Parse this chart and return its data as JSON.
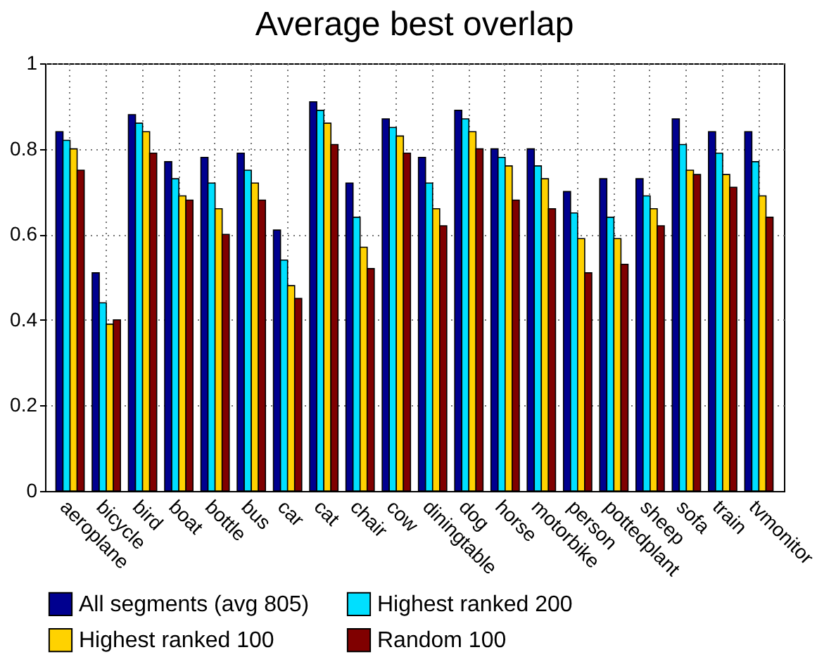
{
  "chart_data": {
    "type": "bar",
    "title": "Average best overlap",
    "categories": [
      "aeroplane",
      "bicycle",
      "bird",
      "boat",
      "bottle",
      "bus",
      "car",
      "cat",
      "chair",
      "cow",
      "diningtable",
      "dog",
      "horse",
      "motorbike",
      "person",
      "pottedplant",
      "sheep",
      "sofa",
      "train",
      "tvmonitor"
    ],
    "series": [
      {
        "name": "All segments (avg 805)",
        "color": "#00008f",
        "values": [
          0.84,
          0.51,
          0.88,
          0.77,
          0.78,
          0.79,
          0.61,
          0.91,
          0.72,
          0.87,
          0.78,
          0.89,
          0.8,
          0.8,
          0.7,
          0.73,
          0.73,
          0.87,
          0.84,
          0.84
        ]
      },
      {
        "name": "Highest ranked 200",
        "color": "#00dfff",
        "values": [
          0.82,
          0.44,
          0.86,
          0.73,
          0.72,
          0.75,
          0.54,
          0.89,
          0.64,
          0.85,
          0.72,
          0.87,
          0.78,
          0.76,
          0.65,
          0.64,
          0.69,
          0.81,
          0.79,
          0.77
        ]
      },
      {
        "name": "Highest ranked 100",
        "color": "#ffd200",
        "values": [
          0.8,
          0.39,
          0.84,
          0.69,
          0.66,
          0.72,
          0.48,
          0.86,
          0.57,
          0.83,
          0.66,
          0.84,
          0.76,
          0.73,
          0.59,
          0.59,
          0.66,
          0.75,
          0.74,
          0.69
        ]
      },
      {
        "name": "Random 100",
        "color": "#800000",
        "values": [
          0.75,
          0.4,
          0.79,
          0.68,
          0.6,
          0.68,
          0.45,
          0.81,
          0.52,
          0.79,
          0.62,
          0.8,
          0.68,
          0.66,
          0.51,
          0.53,
          0.62,
          0.74,
          0.71,
          0.64
        ]
      }
    ],
    "ylim": [
      0,
      1
    ],
    "yticks": [
      0,
      0.2,
      0.4,
      0.6,
      0.8,
      1
    ],
    "grid": true,
    "legend": "bottom"
  }
}
